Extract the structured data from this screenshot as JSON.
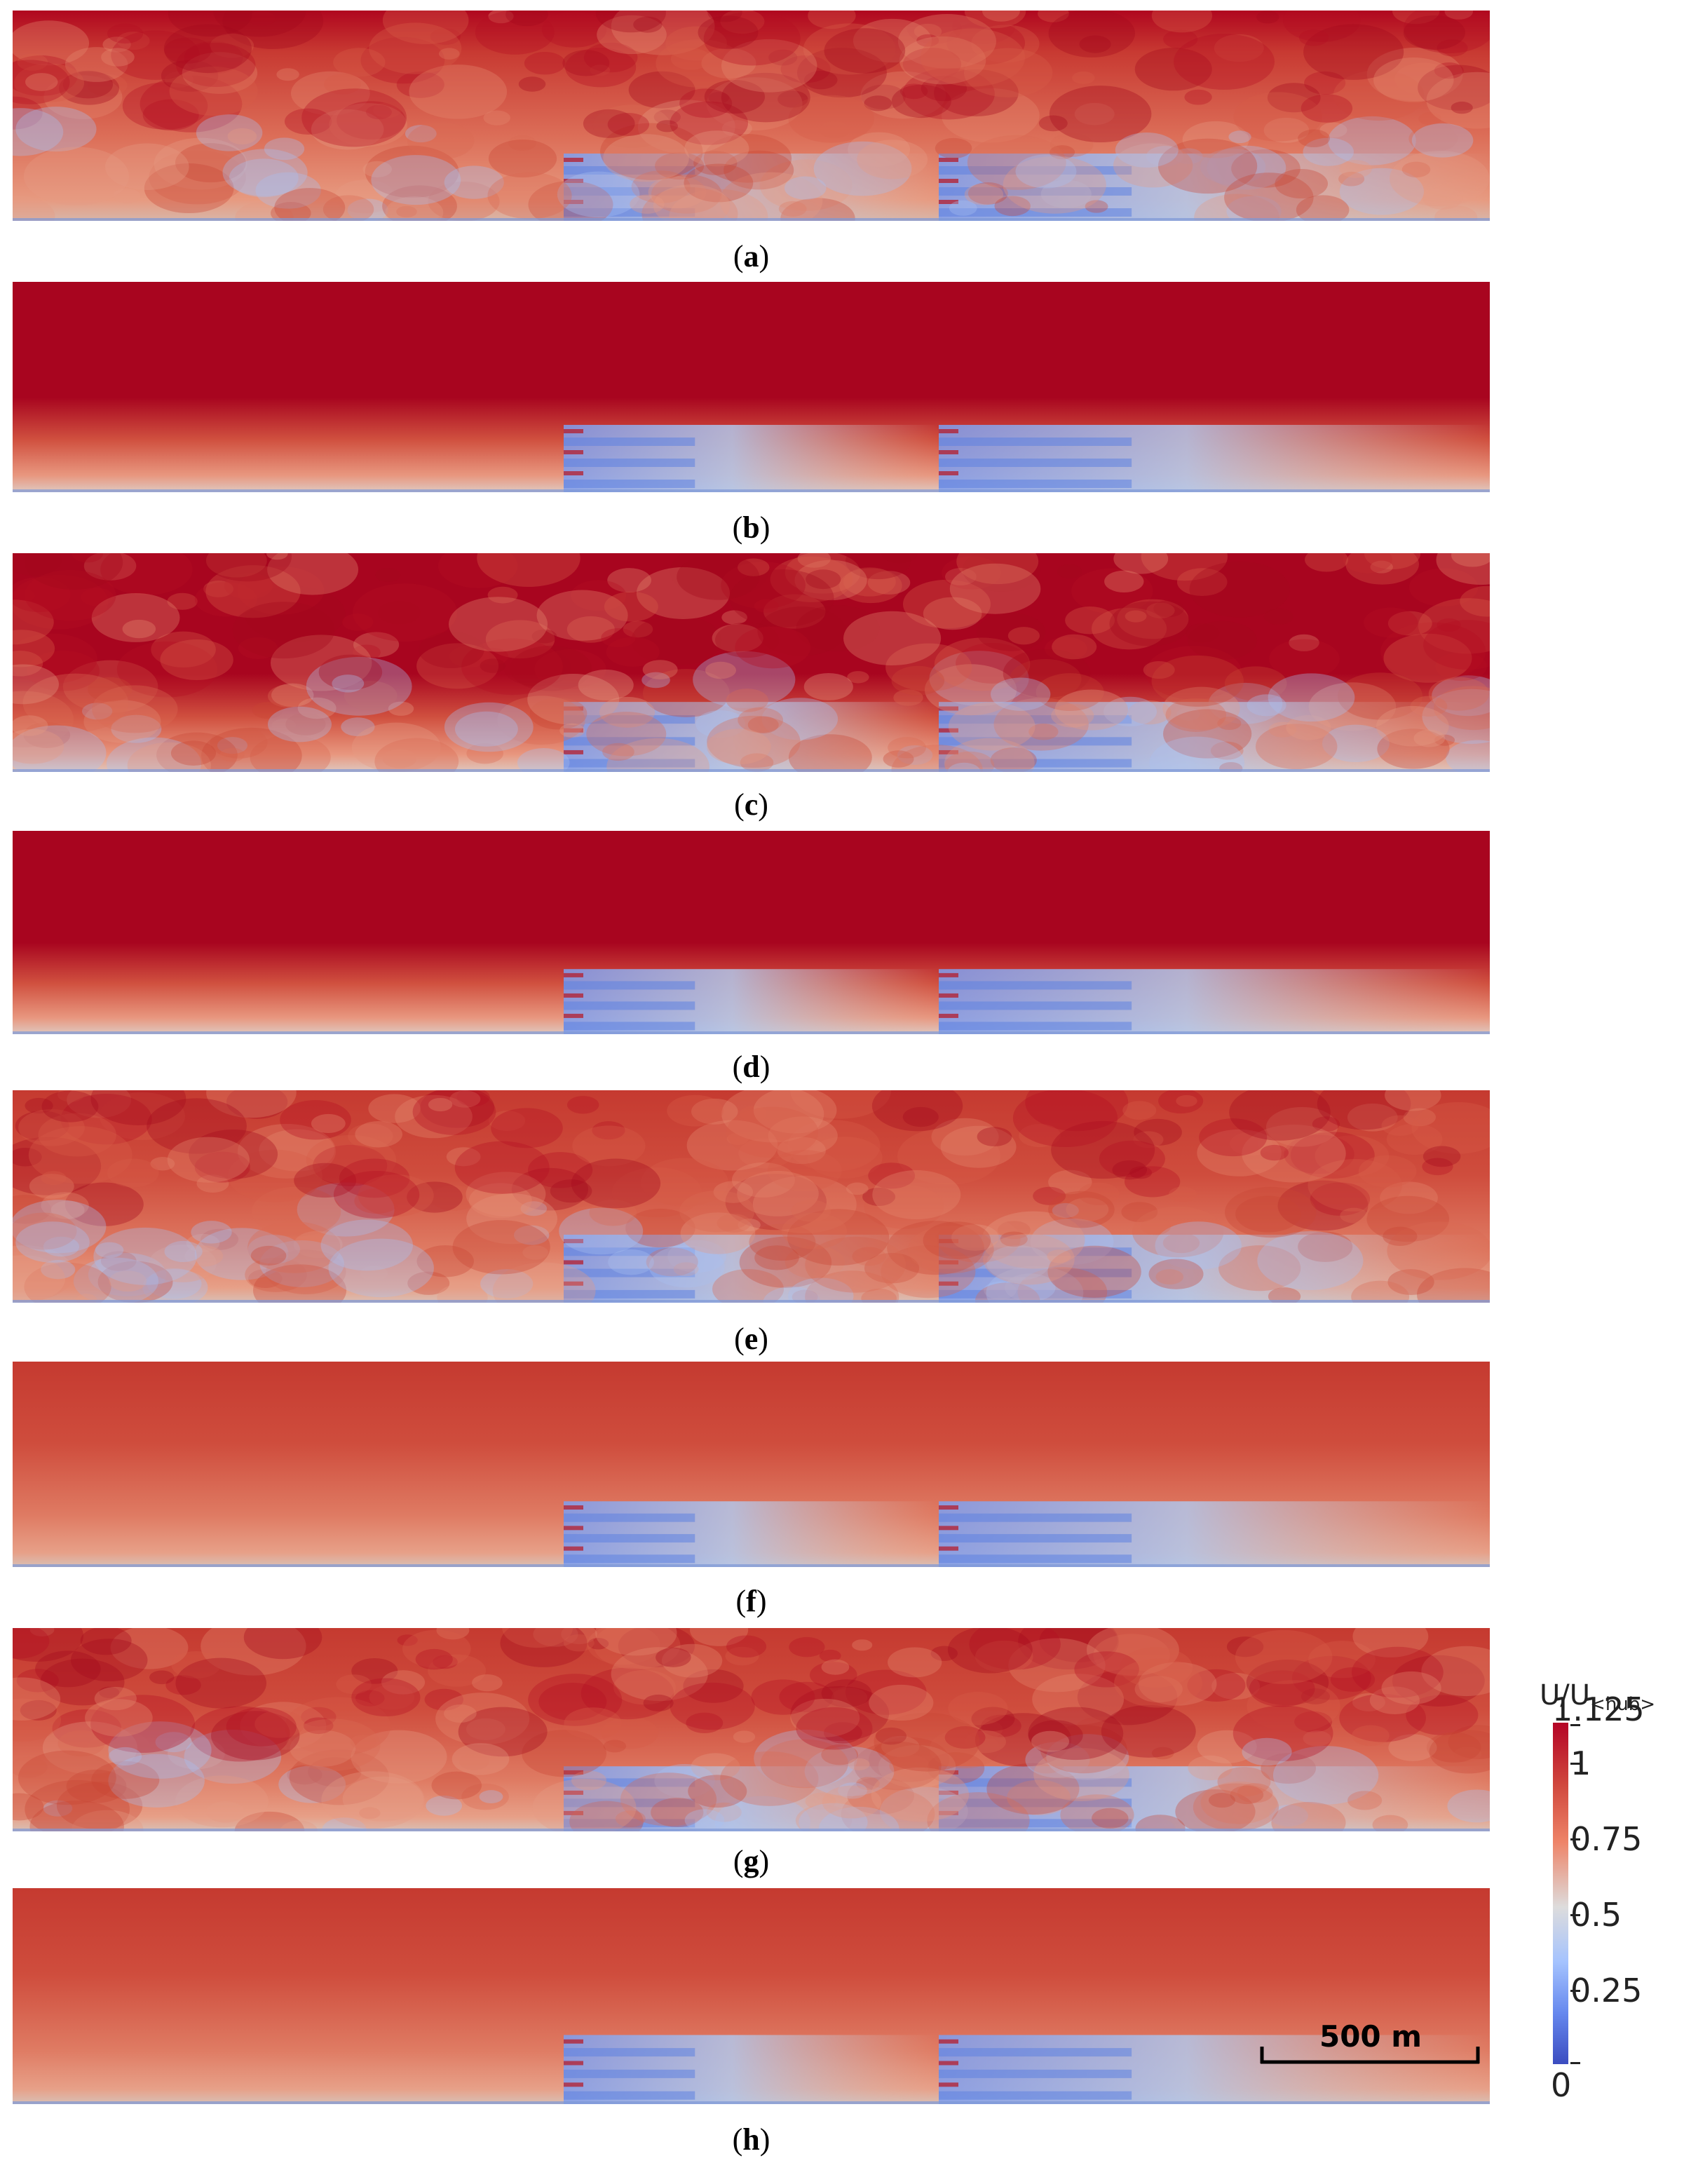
{
  "panels": [
    {
      "label": "a",
      "style": "turbulent",
      "top": "low"
    },
    {
      "label": "b",
      "style": "smooth",
      "top": "high"
    },
    {
      "label": "c",
      "style": "turbulent",
      "top": "high"
    },
    {
      "label": "d",
      "style": "smooth",
      "top": "high"
    },
    {
      "label": "e",
      "style": "turbulent",
      "top": "mid"
    },
    {
      "label": "f",
      "style": "smooth",
      "top": "mid"
    },
    {
      "label": "g",
      "style": "turbulent",
      "top": "mid"
    },
    {
      "label": "h",
      "style": "smooth",
      "top": "mid"
    }
  ],
  "captions": {
    "a": "a",
    "b": "b",
    "c": "c",
    "d": "d",
    "e": "e",
    "f": "f",
    "g": "g",
    "h": "h",
    "open": "(",
    "close": ")"
  },
  "colorbar": {
    "title_main": "U/U",
    "title_sub": "<hub>",
    "ticks": [
      "1.125",
      "1",
      "0.75",
      "0.5",
      "0.25",
      "0"
    ],
    "colors": [
      "#b40426",
      "#ee8468",
      "#dddcdc",
      "#3b4cc0"
    ]
  },
  "scale_bar": {
    "label": "500 m"
  }
}
